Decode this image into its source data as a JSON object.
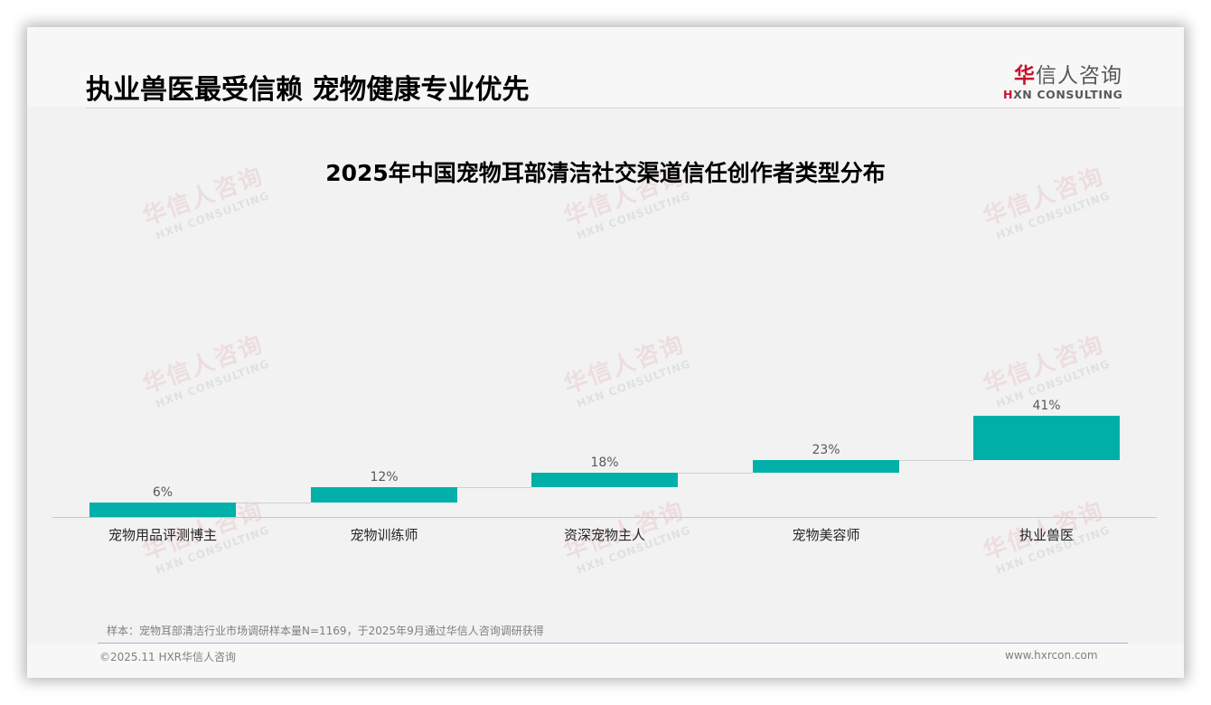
{
  "header": {
    "title": "执业兽医最受信赖 宠物健康专业优先",
    "logo": {
      "cn_accent": "华",
      "cn_rest": "信人咨询",
      "en_accent": "H",
      "en_rest": "XN CONSULTING"
    }
  },
  "watermark": {
    "cn": "华信人咨询",
    "en": "HXN CONSULTING"
  },
  "chart_data": {
    "type": "bar",
    "subtype": "waterfall",
    "title": "2025年中国宠物耳部清洁社交渠道信任创作者类型分布",
    "categories": [
      "宠物用品评测博主",
      "宠物训练师",
      "资深宠物主人",
      "宠物美容师",
      "执业兽医"
    ],
    "values": [
      6,
      12,
      18,
      23,
      41
    ],
    "value_labels": [
      "6%",
      "12%",
      "18%",
      "23%",
      "41%"
    ],
    "unit": "%",
    "xlabel": "",
    "ylabel": "",
    "grid": false,
    "legend": null,
    "bar_color": "#00b0a8"
  },
  "footer": {
    "note": "样本：宠物耳部清洁行业市场调研样本量N=1169，于2025年9月通过华信人咨询调研获得",
    "copyright": "©2025.11 HXR华信人咨询",
    "website": "www.hxrcon.com"
  }
}
